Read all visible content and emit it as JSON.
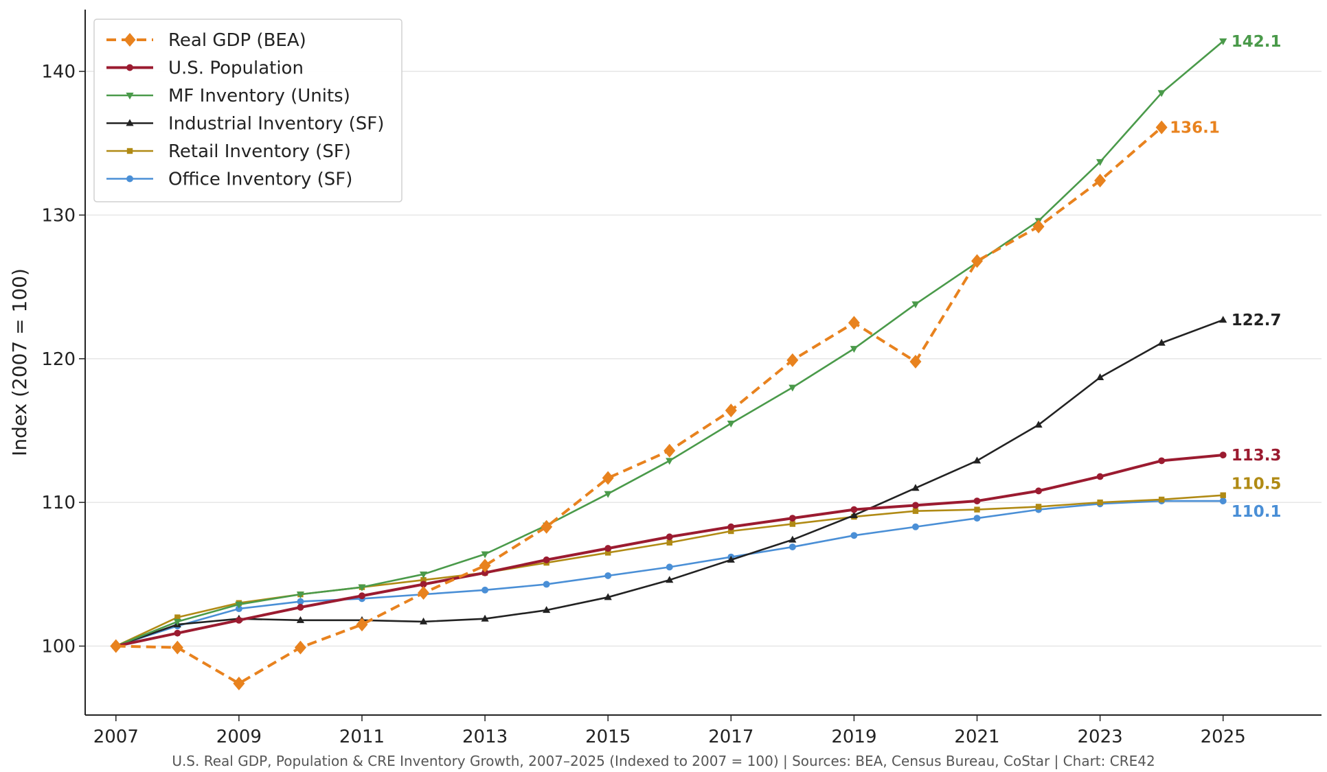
{
  "chart_data": {
    "type": "line",
    "title": "",
    "xlabel": "",
    "ylabel": "Index (2007 = 100)",
    "caption": "U.S. Real GDP, Population & CRE Inventory Growth, 2007–2025 (Indexed to 2007 = 100) | Sources: BEA, Census Bureau, CoStar | Chart: CRE42",
    "xlim": [
      2006.5,
      2026.6
    ],
    "ylim": [
      95.2,
      144.3
    ],
    "x_ticks": [
      2007,
      2009,
      2011,
      2013,
      2015,
      2017,
      2019,
      2021,
      2023,
      2025
    ],
    "x_tick_labels": [
      "2007",
      "2009",
      "2011",
      "2013",
      "2015",
      "2017",
      "2019",
      "2021",
      "2023",
      "2025"
    ],
    "y_ticks": [
      100,
      110,
      120,
      130,
      140
    ],
    "y_tick_labels": [
      "100",
      "110",
      "120",
      "130",
      "140"
    ],
    "grid": "horizontal",
    "legend_position": "top-left",
    "series": [
      {
        "name": "Real GDP (BEA)",
        "color": "#e8821e",
        "line_style": "dashed",
        "marker": "diamond",
        "x": [
          2007,
          2008,
          2009,
          2010,
          2011,
          2012,
          2013,
          2014,
          2015,
          2016,
          2017,
          2018,
          2019,
          2020,
          2021,
          2022,
          2023,
          2024
        ],
        "values": [
          100.0,
          99.9,
          97.4,
          99.9,
          101.5,
          103.7,
          105.6,
          108.3,
          111.7,
          113.6,
          116.4,
          119.9,
          122.5,
          119.8,
          126.8,
          129.2,
          132.4,
          136.1
        ],
        "end_label": "136.1"
      },
      {
        "name": "U.S. Population",
        "color": "#9b1b30",
        "line_style": "solid",
        "marker": "circle",
        "x": [
          2007,
          2008,
          2009,
          2010,
          2011,
          2012,
          2013,
          2014,
          2015,
          2016,
          2017,
          2018,
          2019,
          2020,
          2021,
          2022,
          2023,
          2024,
          2025
        ],
        "values": [
          100.0,
          100.9,
          101.8,
          102.7,
          103.5,
          104.3,
          105.1,
          106.0,
          106.8,
          107.6,
          108.3,
          108.9,
          109.5,
          109.8,
          110.1,
          110.8,
          111.8,
          112.9,
          113.3
        ],
        "end_label": "113.3"
      },
      {
        "name": "MF Inventory (Units)",
        "color": "#4a9a4a",
        "line_style": "solid",
        "marker": "triangle-down",
        "x": [
          2007,
          2008,
          2009,
          2010,
          2011,
          2012,
          2013,
          2014,
          2015,
          2016,
          2017,
          2018,
          2019,
          2020,
          2021,
          2022,
          2023,
          2024,
          2025
        ],
        "values": [
          100.0,
          101.7,
          102.9,
          103.6,
          104.1,
          105.0,
          106.4,
          108.4,
          110.6,
          112.9,
          115.5,
          118.0,
          120.7,
          123.8,
          126.7,
          129.6,
          133.7,
          138.5,
          142.1
        ],
        "end_label": "142.1"
      },
      {
        "name": "Industrial Inventory (SF)",
        "color": "#222222",
        "line_style": "solid",
        "marker": "triangle-up",
        "x": [
          2007,
          2008,
          2009,
          2010,
          2011,
          2012,
          2013,
          2014,
          2015,
          2016,
          2017,
          2018,
          2019,
          2020,
          2021,
          2022,
          2023,
          2024,
          2025
        ],
        "values": [
          100.0,
          101.5,
          101.9,
          101.8,
          101.8,
          101.7,
          101.9,
          102.5,
          103.4,
          104.6,
          106.0,
          107.4,
          109.1,
          111.0,
          112.9,
          115.4,
          118.7,
          121.1,
          122.7
        ],
        "end_label": "122.7"
      },
      {
        "name": "Retail Inventory (SF)",
        "color": "#b08a14",
        "line_style": "solid",
        "marker": "square",
        "x": [
          2007,
          2008,
          2009,
          2010,
          2011,
          2012,
          2013,
          2014,
          2015,
          2016,
          2017,
          2018,
          2019,
          2020,
          2021,
          2022,
          2023,
          2024,
          2025
        ],
        "values": [
          100.0,
          102.0,
          103.0,
          103.6,
          104.1,
          104.6,
          105.1,
          105.8,
          106.5,
          107.2,
          108.0,
          108.5,
          109.0,
          109.4,
          109.5,
          109.7,
          110.0,
          110.2,
          110.5
        ],
        "end_label": "110.5"
      },
      {
        "name": "Office Inventory (SF)",
        "color": "#4a8fd6",
        "line_style": "solid",
        "marker": "circle",
        "x": [
          2007,
          2008,
          2009,
          2010,
          2011,
          2012,
          2013,
          2014,
          2015,
          2016,
          2017,
          2018,
          2019,
          2020,
          2021,
          2022,
          2023,
          2024,
          2025
        ],
        "values": [
          100.0,
          101.4,
          102.6,
          103.1,
          103.3,
          103.6,
          103.9,
          104.3,
          104.9,
          105.5,
          106.2,
          106.9,
          107.7,
          108.3,
          108.9,
          109.5,
          109.9,
          110.1,
          110.1
        ],
        "end_label": "110.1"
      }
    ]
  }
}
